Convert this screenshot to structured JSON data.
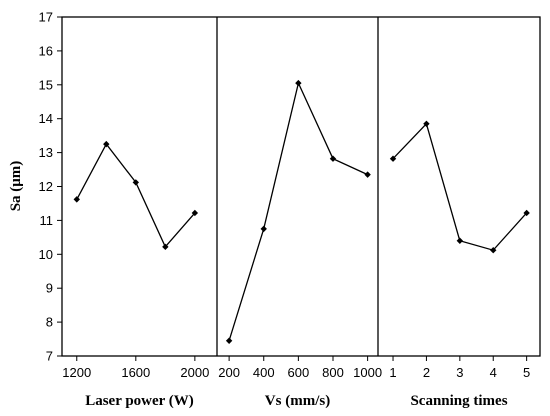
{
  "chart_data": {
    "type": "line",
    "ylabel": "Sa (μm)",
    "ylim": [
      7,
      17
    ],
    "yticks": [
      "7",
      "8",
      "9",
      "10",
      "11",
      "12",
      "13",
      "14",
      "15",
      "16",
      "17"
    ],
    "grid": false,
    "panels": [
      {
        "xlabel": "Laser power (W)",
        "xticks": [
          "1200",
          "1600",
          "2000"
        ],
        "x": [
          1200,
          1400,
          1600,
          1800,
          2000
        ],
        "y": [
          11.62,
          13.25,
          12.12,
          10.22,
          11.22
        ],
        "xlim": [
          1100,
          2150
        ]
      },
      {
        "xlabel": "Vs (mm/s)",
        "xticks": [
          "200",
          "400",
          "600",
          "800",
          "1000"
        ],
        "x": [
          200,
          400,
          600,
          800,
          1000
        ],
        "y": [
          7.45,
          10.75,
          15.05,
          12.82,
          12.35
        ],
        "xlim": [
          130,
          1060
        ]
      },
      {
        "xlabel": "Scanning times",
        "xticks": [
          "1",
          "2",
          "3",
          "4",
          "5"
        ],
        "x": [
          1,
          2,
          3,
          4,
          5
        ],
        "y": [
          12.82,
          13.85,
          10.4,
          10.12,
          11.22
        ],
        "xlim": [
          0.55,
          5.4
        ]
      }
    ]
  }
}
